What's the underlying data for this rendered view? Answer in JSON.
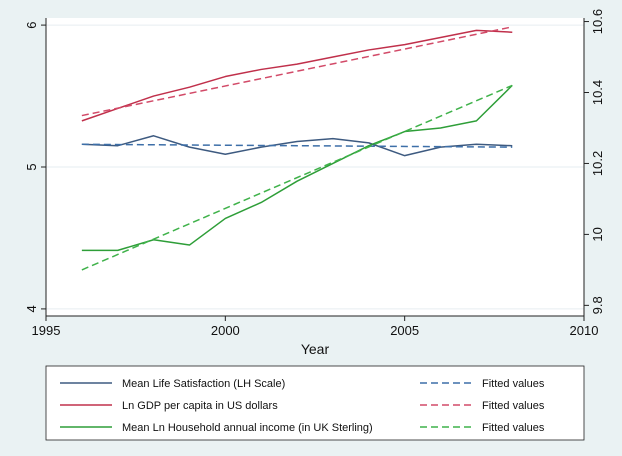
{
  "chart_data": {
    "type": "line",
    "xlabel": "Year",
    "xlim": [
      1995,
      2010
    ],
    "x_ticks": [
      "1995",
      "2000",
      "2005",
      "2010"
    ],
    "y_left": {
      "lim": [
        3.95,
        6.05
      ],
      "ticks": [
        "4",
        "5",
        "6"
      ]
    },
    "y_right": {
      "lim": [
        9.77,
        10.61
      ],
      "ticks": [
        "9.8",
        "10",
        "10.2",
        "10.4",
        "10.6"
      ]
    },
    "grid": "horizontal",
    "legend_position": "bottom",
    "series": [
      {
        "name": "Mean Life Satisfaction (LH Scale)",
        "axis": "left",
        "style": "solid",
        "color": "#3d5a80",
        "x": [
          1996,
          1997,
          1998,
          1999,
          2000,
          2001,
          2002,
          2003,
          2004,
          2005,
          2006,
          2007,
          2008
        ],
        "y": [
          5.16,
          5.15,
          5.22,
          5.14,
          5.09,
          5.14,
          5.18,
          5.2,
          5.17,
          5.08,
          5.14,
          5.16,
          5.15
        ]
      },
      {
        "name": "Fitted values",
        "axis": "left",
        "style": "dashed",
        "color": "#3d6fa8",
        "x": [
          1996,
          2008
        ],
        "y": [
          5.16,
          5.14
        ]
      },
      {
        "name": "Ln GDP per capita in US dollars",
        "axis": "right",
        "style": "solid",
        "color": "#c0304b",
        "x": [
          1996,
          1997,
          1998,
          1999,
          2000,
          2001,
          2002,
          2003,
          2004,
          2005,
          2006,
          2007,
          2008
        ],
        "y": [
          10.32,
          10.355,
          10.39,
          10.415,
          10.445,
          10.465,
          10.48,
          10.5,
          10.52,
          10.535,
          10.555,
          10.575,
          10.57
        ]
      },
      {
        "name": "Fitted values",
        "axis": "right",
        "style": "dashed",
        "color": "#d24a68",
        "x": [
          1996,
          2008
        ],
        "y": [
          10.335,
          10.585
        ]
      },
      {
        "name": "Mean Ln Household annual income (in UK Sterling)",
        "axis": "right",
        "style": "solid",
        "color": "#2e9e38",
        "x": [
          1996,
          1997,
          1998,
          1999,
          2000,
          2001,
          2002,
          2003,
          2004,
          2005,
          2006,
          2007,
          2008
        ],
        "y": [
          9.955,
          9.955,
          9.985,
          9.97,
          10.045,
          10.09,
          10.15,
          10.2,
          10.25,
          10.29,
          10.3,
          10.32,
          10.42
        ]
      },
      {
        "name": "Fitted values",
        "axis": "right",
        "style": "dashed",
        "color": "#3fb24a",
        "x": [
          1996,
          2008
        ],
        "y": [
          9.9,
          10.42
        ]
      }
    ],
    "legend": [
      {
        "label": "Mean Life Satisfaction (LH Scale)",
        "color": "#3d5a80",
        "style": "solid"
      },
      {
        "label": "Fitted values",
        "color": "#3d6fa8",
        "style": "dashed"
      },
      {
        "label": "Ln GDP per capita in US dollars",
        "color": "#c0304b",
        "style": "solid"
      },
      {
        "label": "Fitted values",
        "color": "#d24a68",
        "style": "dashed"
      },
      {
        "label": "Mean Ln Household annual income (in UK Sterling)",
        "color": "#2e9e38",
        "style": "solid"
      },
      {
        "label": "Fitted values",
        "color": "#3fb24a",
        "style": "dashed"
      }
    ]
  }
}
